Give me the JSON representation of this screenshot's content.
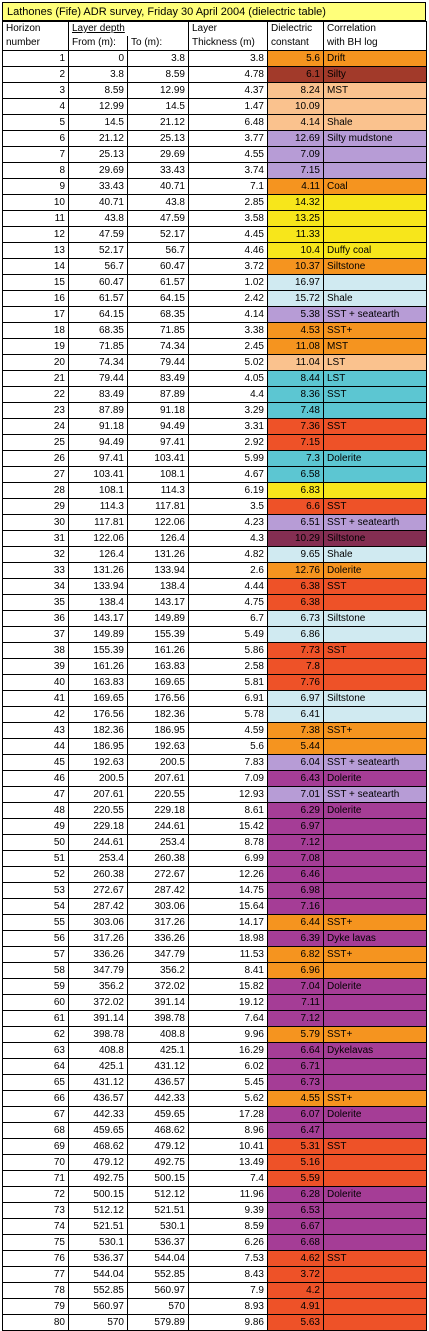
{
  "title": "Lathones (Fife) ADR survey, Friday 30 April 2004 (dielectric table)",
  "headers": {
    "horizon_1": "Horizon",
    "horizon_2": "number",
    "depth_1": "Layer depth",
    "from": "From (m):",
    "to": "To (m):",
    "thick_1": "Layer",
    "thick_2": "Thickness (m)",
    "diel_1": "Dielectric",
    "diel_2": "constant",
    "corr_1": "Correlation",
    "corr_2": "with BH log"
  },
  "colors": {
    "orange": "#f5941f",
    "peach": "#fac28e",
    "brown": "#a23a2a",
    "lavender": "#b79cd6",
    "yellow": "#f7e61b",
    "lightblue": "#d0eaf1",
    "teal": "#5cc6d2",
    "redorange": "#ee5228",
    "maroon": "#842e52",
    "magenta": "#a53d96",
    "title_bg": "#ffff7a"
  },
  "rows": [
    {
      "n": "1",
      "from": "0",
      "to": "3.8",
      "thick": "3.8",
      "diel": "5.6",
      "corr": "Drift",
      "c": "orange"
    },
    {
      "n": "2",
      "from": "3.8",
      "to": "8.59",
      "thick": "4.78",
      "diel": "6.1",
      "corr": "Silty",
      "c": "brown"
    },
    {
      "n": "3",
      "from": "8.59",
      "to": "12.99",
      "thick": "4.37",
      "diel": "8.24",
      "corr": "MST",
      "c": "peach"
    },
    {
      "n": "4",
      "from": "12.99",
      "to": "14.5",
      "thick": "1.47",
      "diel": "10.09",
      "corr": "",
      "c": "peach"
    },
    {
      "n": "5",
      "from": "14.5",
      "to": "21.12",
      "thick": "6.48",
      "diel": "4.14",
      "corr": "Shale",
      "c": "peach"
    },
    {
      "n": "6",
      "from": "21.12",
      "to": "25.13",
      "thick": "3.77",
      "diel": "12.69",
      "corr": "Silty mudstone",
      "c": "lavender"
    },
    {
      "n": "7",
      "from": "25.13",
      "to": "29.69",
      "thick": "4.55",
      "diel": "7.09",
      "corr": "",
      "c": "lavender"
    },
    {
      "n": "8",
      "from": "29.69",
      "to": "33.43",
      "thick": "3.74",
      "diel": "7.15",
      "corr": "",
      "c": "lavender"
    },
    {
      "n": "9",
      "from": "33.43",
      "to": "40.71",
      "thick": "7.1",
      "diel": "4.11",
      "corr": "Coal",
      "c": "orange"
    },
    {
      "n": "10",
      "from": "40.71",
      "to": "43.8",
      "thick": "2.85",
      "diel": "14.32",
      "corr": "",
      "c": "yellow"
    },
    {
      "n": "11",
      "from": "43.8",
      "to": "47.59",
      "thick": "3.58",
      "diel": "13.25",
      "corr": "",
      "c": "yellow"
    },
    {
      "n": "12",
      "from": "47.59",
      "to": "52.17",
      "thick": "4.45",
      "diel": "11.33",
      "corr": "",
      "c": "yellow"
    },
    {
      "n": "13",
      "from": "52.17",
      "to": "56.7",
      "thick": "4.46",
      "diel": "10.4",
      "corr": "Duffy coal",
      "c": "yellow"
    },
    {
      "n": "14",
      "from": "56.7",
      "to": "60.47",
      "thick": "3.72",
      "diel": "10.37",
      "corr": "Siltstone",
      "c": "orange"
    },
    {
      "n": "15",
      "from": "60.47",
      "to": "61.57",
      "thick": "1.02",
      "diel": "16.97",
      "corr": "",
      "c": "lightblue"
    },
    {
      "n": "16",
      "from": "61.57",
      "to": "64.15",
      "thick": "2.42",
      "diel": "15.72",
      "corr": "Shale",
      "c": "lightblue"
    },
    {
      "n": "17",
      "from": "64.15",
      "to": "68.35",
      "thick": "4.14",
      "diel": "5.38",
      "corr": "SST + seatearth",
      "c": "lavender"
    },
    {
      "n": "18",
      "from": "68.35",
      "to": "71.85",
      "thick": "3.38",
      "diel": "4.53",
      "corr": "SST+",
      "c": "orange"
    },
    {
      "n": "19",
      "from": "71.85",
      "to": "74.34",
      "thick": "2.45",
      "diel": "11.08",
      "corr": "MST",
      "c": "orange"
    },
    {
      "n": "20",
      "from": "74.34",
      "to": "79.44",
      "thick": "5.02",
      "diel": "11.04",
      "corr": "LST",
      "c": "peach"
    },
    {
      "n": "21",
      "from": "79.44",
      "to": "83.49",
      "thick": "4.05",
      "diel": "8.44",
      "corr": "LST",
      "c": "teal"
    },
    {
      "n": "22",
      "from": "83.49",
      "to": "87.89",
      "thick": "4.4",
      "diel": "8.36",
      "corr": "SST",
      "c": "teal"
    },
    {
      "n": "23",
      "from": "87.89",
      "to": "91.18",
      "thick": "3.29",
      "diel": "7.48",
      "corr": "",
      "c": "teal"
    },
    {
      "n": "24",
      "from": "91.18",
      "to": "94.49",
      "thick": "3.31",
      "diel": "7.36",
      "corr": "SST",
      "c": "redorange"
    },
    {
      "n": "25",
      "from": "94.49",
      "to": "97.41",
      "thick": "2.92",
      "diel": "7.15",
      "corr": "",
      "c": "redorange"
    },
    {
      "n": "26",
      "from": "97.41",
      "to": "103.41",
      "thick": "5.99",
      "diel": "7.3",
      "corr": "Dolerite",
      "c": "teal"
    },
    {
      "n": "27",
      "from": "103.41",
      "to": "108.1",
      "thick": "4.67",
      "diel": "6.58",
      "corr": "",
      "c": "teal"
    },
    {
      "n": "28",
      "from": "108.1",
      "to": "114.3",
      "thick": "6.19",
      "diel": "6.83",
      "corr": "",
      "c": "yellow"
    },
    {
      "n": "29",
      "from": "114.3",
      "to": "117.81",
      "thick": "3.5",
      "diel": "6.6",
      "corr": "SST",
      "c": "redorange"
    },
    {
      "n": "30",
      "from": "117.81",
      "to": "122.06",
      "thick": "4.23",
      "diel": "6.51",
      "corr": "SST + seatearth",
      "c": "lavender"
    },
    {
      "n": "31",
      "from": "122.06",
      "to": "126.4",
      "thick": "4.3",
      "diel": "10.29",
      "corr": "Siltstone",
      "c": "maroon"
    },
    {
      "n": "32",
      "from": "126.4",
      "to": "131.26",
      "thick": "4.82",
      "diel": "9.65",
      "corr": "Shale",
      "c": "lightblue"
    },
    {
      "n": "33",
      "from": "131.26",
      "to": "133.94",
      "thick": "2.6",
      "diel": "12.76",
      "corr": "Dolerite",
      "c": "orange"
    },
    {
      "n": "34",
      "from": "133.94",
      "to": "138.4",
      "thick": "4.44",
      "diel": "6.38",
      "corr": "SST",
      "c": "redorange"
    },
    {
      "n": "35",
      "from": "138.4",
      "to": "143.17",
      "thick": "4.75",
      "diel": "6.38",
      "corr": "",
      "c": "redorange"
    },
    {
      "n": "36",
      "from": "143.17",
      "to": "149.89",
      "thick": "6.7",
      "diel": "6.73",
      "corr": "Siltstone",
      "c": "lightblue"
    },
    {
      "n": "37",
      "from": "149.89",
      "to": "155.39",
      "thick": "5.49",
      "diel": "6.86",
      "corr": "",
      "c": "lightblue"
    },
    {
      "n": "38",
      "from": "155.39",
      "to": "161.26",
      "thick": "5.86",
      "diel": "7.73",
      "corr": "SST",
      "c": "redorange"
    },
    {
      "n": "39",
      "from": "161.26",
      "to": "163.83",
      "thick": "2.58",
      "diel": "7.8",
      "corr": "",
      "c": "redorange"
    },
    {
      "n": "40",
      "from": "163.83",
      "to": "169.65",
      "thick": "5.81",
      "diel": "7.76",
      "corr": "",
      "c": "redorange"
    },
    {
      "n": "41",
      "from": "169.65",
      "to": "176.56",
      "thick": "6.91",
      "diel": "6.97",
      "corr": "Siltstone",
      "c": "lightblue"
    },
    {
      "n": "42",
      "from": "176.56",
      "to": "182.36",
      "thick": "5.78",
      "diel": "6.41",
      "corr": "",
      "c": "lightblue"
    },
    {
      "n": "43",
      "from": "182.36",
      "to": "186.95",
      "thick": "4.59",
      "diel": "7.38",
      "corr": "SST+",
      "c": "orange"
    },
    {
      "n": "44",
      "from": "186.95",
      "to": "192.63",
      "thick": "5.6",
      "diel": "5.44",
      "corr": "",
      "c": "orange"
    },
    {
      "n": "45",
      "from": "192.63",
      "to": "200.5",
      "thick": "7.83",
      "diel": "6.04",
      "corr": "SST + seatearth",
      "c": "lavender"
    },
    {
      "n": "46",
      "from": "200.5",
      "to": "207.61",
      "thick": "7.09",
      "diel": "6.43",
      "corr": "Dolerite",
      "c": "magenta"
    },
    {
      "n": "47",
      "from": "207.61",
      "to": "220.55",
      "thick": "12.93",
      "diel": "7.01",
      "corr": "SST + seatearth",
      "c": "lavender"
    },
    {
      "n": "48",
      "from": "220.55",
      "to": "229.18",
      "thick": "8.61",
      "diel": "6.29",
      "corr": "Dolerite",
      "c": "magenta"
    },
    {
      "n": "49",
      "from": "229.18",
      "to": "244.61",
      "thick": "15.42",
      "diel": "6.97",
      "corr": "",
      "c": "magenta"
    },
    {
      "n": "50",
      "from": "244.61",
      "to": "253.4",
      "thick": "8.78",
      "diel": "7.12",
      "corr": "",
      "c": "magenta"
    },
    {
      "n": "51",
      "from": "253.4",
      "to": "260.38",
      "thick": "6.99",
      "diel": "7.08",
      "corr": "",
      "c": "magenta"
    },
    {
      "n": "52",
      "from": "260.38",
      "to": "272.67",
      "thick": "12.26",
      "diel": "6.46",
      "corr": "",
      "c": "magenta"
    },
    {
      "n": "53",
      "from": "272.67",
      "to": "287.42",
      "thick": "14.75",
      "diel": "6.98",
      "corr": "",
      "c": "magenta"
    },
    {
      "n": "54",
      "from": "287.42",
      "to": "303.06",
      "thick": "15.64",
      "diel": "7.16",
      "corr": "",
      "c": "magenta"
    },
    {
      "n": "55",
      "from": "303.06",
      "to": "317.26",
      "thick": "14.17",
      "diel": "6.44",
      "corr": "SST+",
      "c": "orange"
    },
    {
      "n": "56",
      "from": "317.26",
      "to": "336.26",
      "thick": "18.98",
      "diel": "6.39",
      "corr": "Dyke lavas",
      "c": "magenta"
    },
    {
      "n": "57",
      "from": "336.26",
      "to": "347.79",
      "thick": "11.53",
      "diel": "6.82",
      "corr": "SST+",
      "c": "orange"
    },
    {
      "n": "58",
      "from": "347.79",
      "to": "356.2",
      "thick": "8.41",
      "diel": "6.96",
      "corr": "",
      "c": "orange"
    },
    {
      "n": "59",
      "from": "356.2",
      "to": "372.02",
      "thick": "15.82",
      "diel": "7.04",
      "corr": "Dolerite",
      "c": "magenta"
    },
    {
      "n": "60",
      "from": "372.02",
      "to": "391.14",
      "thick": "19.12",
      "diel": "7.11",
      "corr": "",
      "c": "magenta"
    },
    {
      "n": "61",
      "from": "391.14",
      "to": "398.78",
      "thick": "7.64",
      "diel": "7.12",
      "corr": "",
      "c": "magenta"
    },
    {
      "n": "62",
      "from": "398.78",
      "to": "408.8",
      "thick": "9.96",
      "diel": "5.79",
      "corr": "SST+",
      "c": "orange"
    },
    {
      "n": "63",
      "from": "408.8",
      "to": "425.1",
      "thick": "16.29",
      "diel": "6.64",
      "corr": "Dykelavas",
      "c": "magenta"
    },
    {
      "n": "64",
      "from": "425.1",
      "to": "431.12",
      "thick": "6.02",
      "diel": "6.71",
      "corr": "",
      "c": "magenta"
    },
    {
      "n": "65",
      "from": "431.12",
      "to": "436.57",
      "thick": "5.45",
      "diel": "6.73",
      "corr": "",
      "c": "magenta"
    },
    {
      "n": "66",
      "from": "436.57",
      "to": "442.33",
      "thick": "5.62",
      "diel": "4.55",
      "corr": "SST+",
      "c": "orange"
    },
    {
      "n": "67",
      "from": "442.33",
      "to": "459.65",
      "thick": "17.28",
      "diel": "6.07",
      "corr": "Dolerite",
      "c": "magenta"
    },
    {
      "n": "68",
      "from": "459.65",
      "to": "468.62",
      "thick": "8.96",
      "diel": "6.47",
      "corr": "",
      "c": "magenta"
    },
    {
      "n": "69",
      "from": "468.62",
      "to": "479.12",
      "thick": "10.41",
      "diel": "5.31",
      "corr": "SST",
      "c": "redorange"
    },
    {
      "n": "70",
      "from": "479.12",
      "to": "492.75",
      "thick": "13.49",
      "diel": "5.16",
      "corr": "",
      "c": "redorange"
    },
    {
      "n": "71",
      "from": "492.75",
      "to": "500.15",
      "thick": "7.4",
      "diel": "5.59",
      "corr": "",
      "c": "redorange"
    },
    {
      "n": "72",
      "from": "500.15",
      "to": "512.12",
      "thick": "11.96",
      "diel": "6.28",
      "corr": "Dolerite",
      "c": "magenta"
    },
    {
      "n": "73",
      "from": "512.12",
      "to": "521.51",
      "thick": "9.39",
      "diel": "6.53",
      "corr": "",
      "c": "magenta"
    },
    {
      "n": "74",
      "from": "521.51",
      "to": "530.1",
      "thick": "8.59",
      "diel": "6.67",
      "corr": "",
      "c": "magenta"
    },
    {
      "n": "75",
      "from": "530.1",
      "to": "536.37",
      "thick": "6.26",
      "diel": "6.68",
      "corr": "",
      "c": "magenta"
    },
    {
      "n": "76",
      "from": "536.37",
      "to": "544.04",
      "thick": "7.53",
      "diel": "4.62",
      "corr": "SST",
      "c": "redorange"
    },
    {
      "n": "77",
      "from": "544.04",
      "to": "552.85",
      "thick": "8.43",
      "diel": "3.72",
      "corr": "",
      "c": "redorange"
    },
    {
      "n": "78",
      "from": "552.85",
      "to": "560.97",
      "thick": "7.9",
      "diel": "4.2",
      "corr": "",
      "c": "redorange"
    },
    {
      "n": "79",
      "from": "560.97",
      "to": "570",
      "thick": "8.93",
      "diel": "4.91",
      "corr": "",
      "c": "redorange"
    },
    {
      "n": "80",
      "from": "570",
      "to": "579.89",
      "thick": "9.86",
      "diel": "5.63",
      "corr": "",
      "c": "redorange"
    }
  ]
}
